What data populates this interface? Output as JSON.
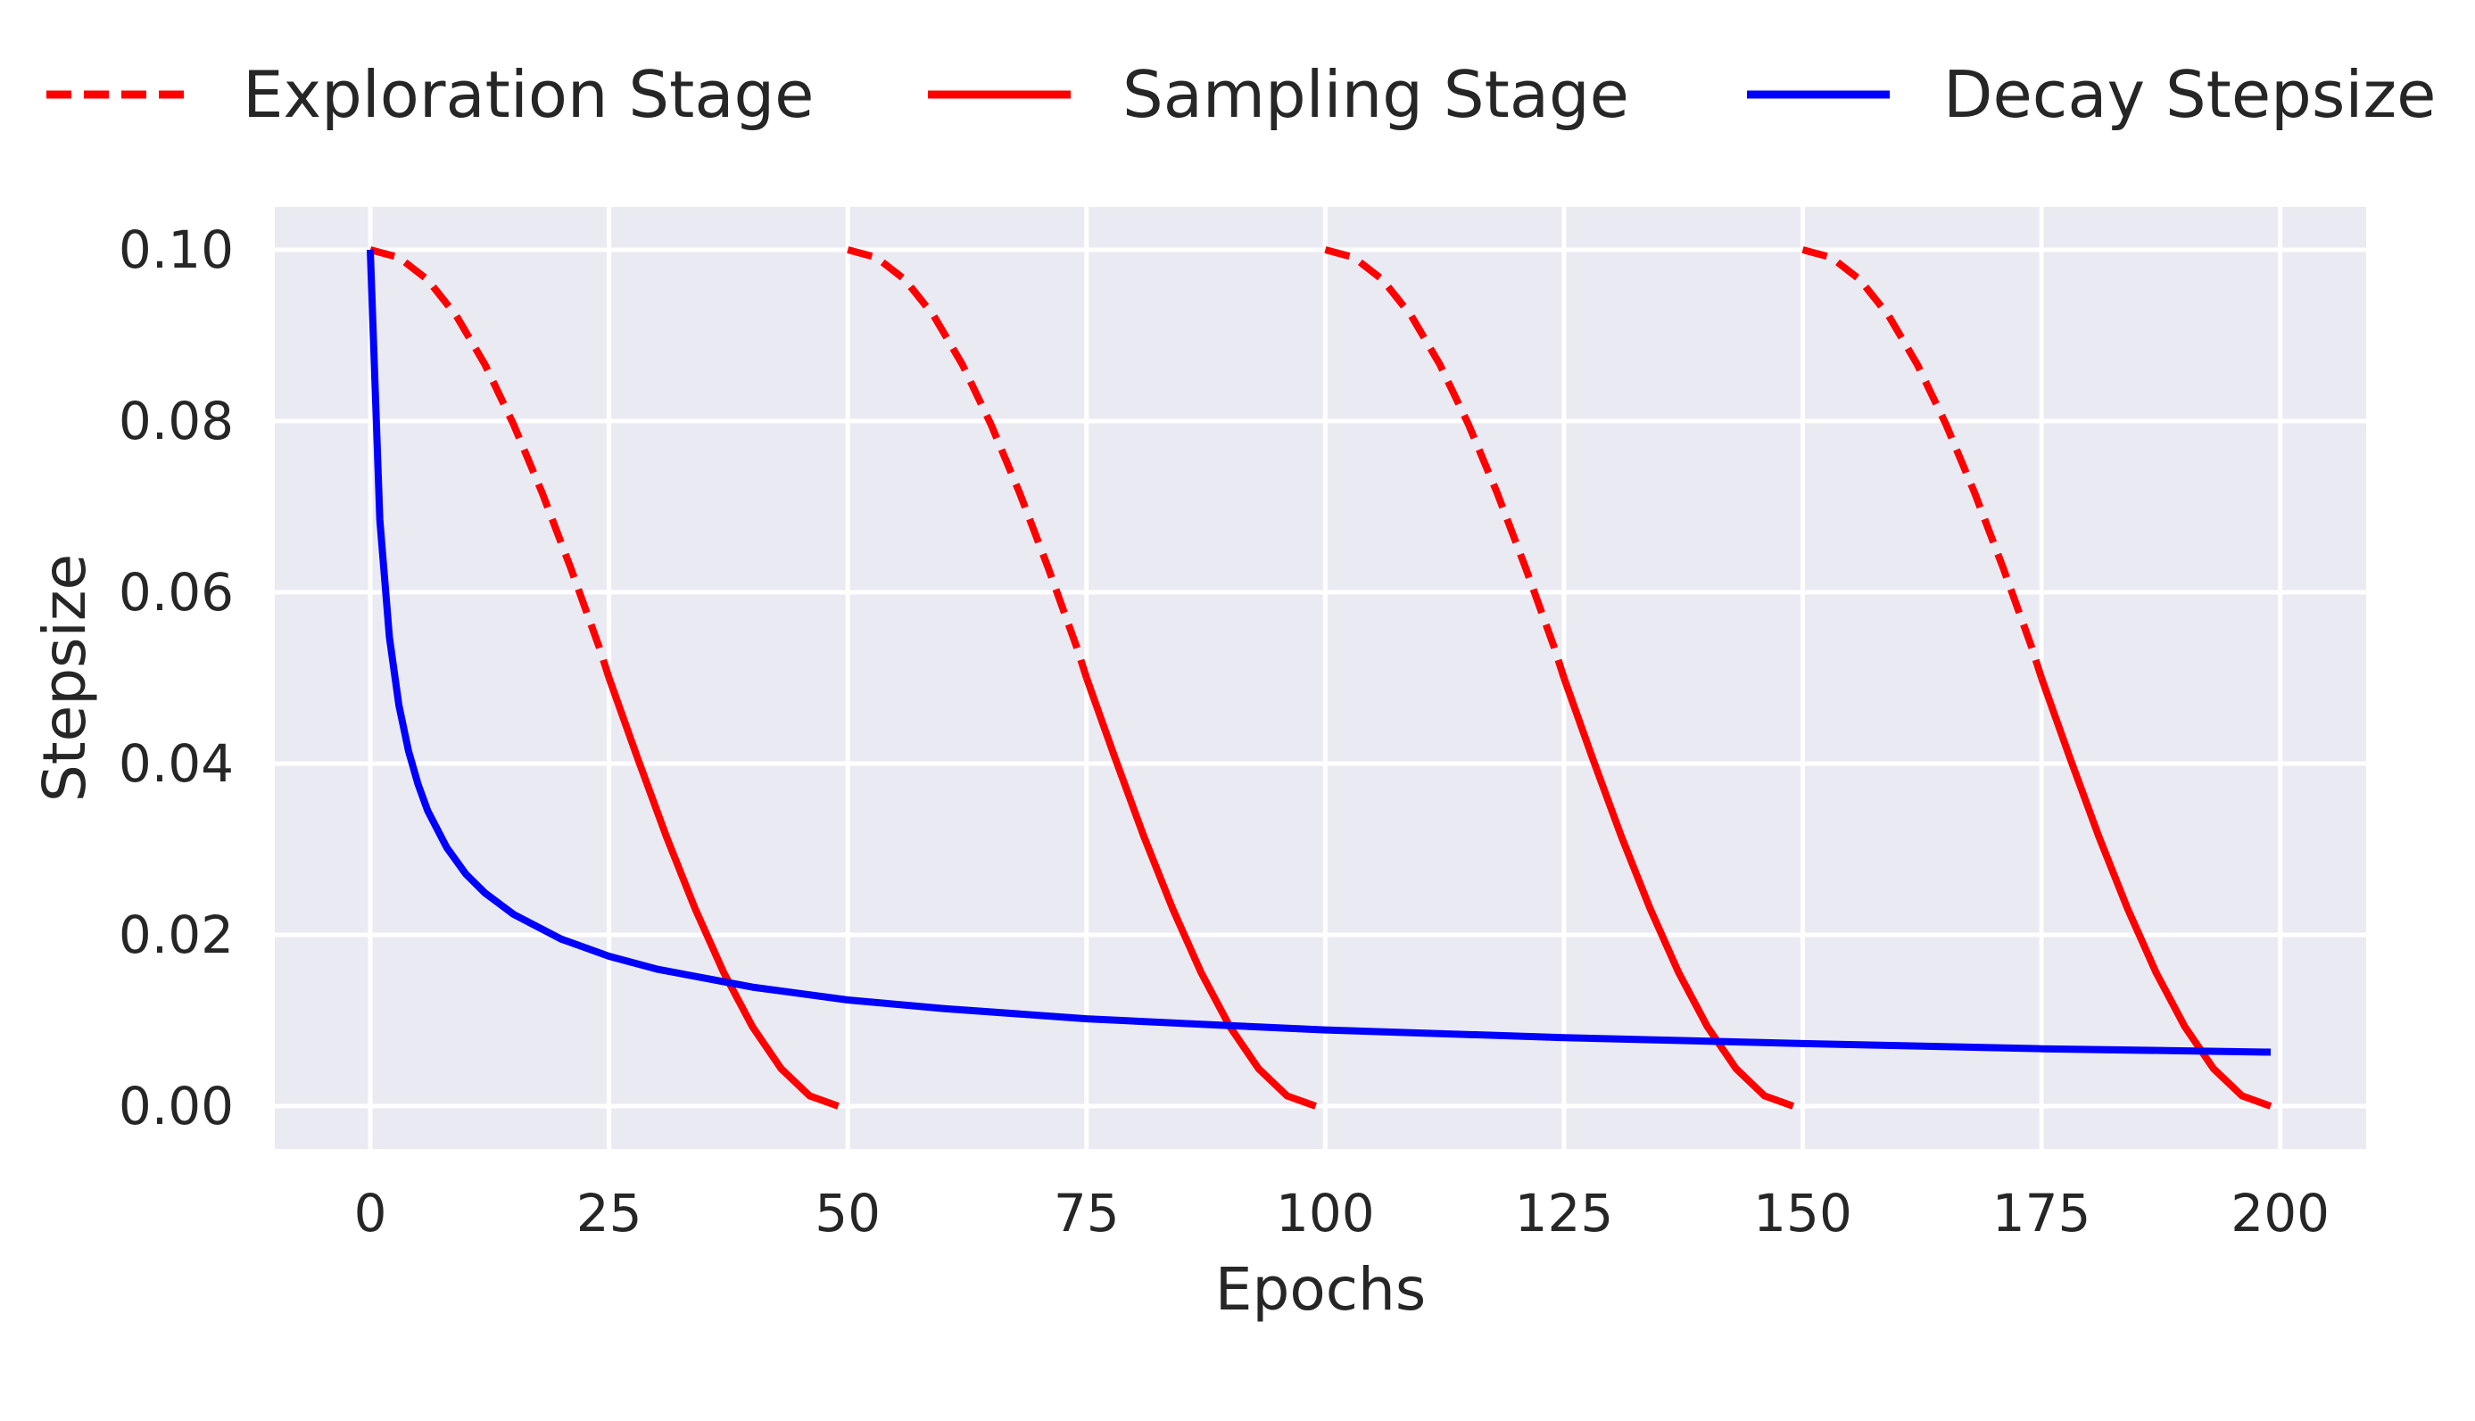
{
  "chart_data": {
    "type": "line",
    "title": "",
    "xlabel": "Epochs",
    "ylabel": "Stepsize",
    "xlim": [
      -10,
      209
    ],
    "ylim": [
      -0.005,
      0.105
    ],
    "xticks": [
      0,
      25,
      50,
      75,
      100,
      125,
      150,
      175,
      200
    ],
    "xtick_labels": [
      "0",
      "25",
      "50",
      "75",
      "100",
      "125",
      "150",
      "175",
      "200"
    ],
    "yticks": [
      0.0,
      0.02,
      0.04,
      0.06,
      0.08,
      0.1
    ],
    "ytick_labels": [
      "0.00",
      "0.02",
      "0.04",
      "0.06",
      "0.08",
      "0.10"
    ],
    "grid": true,
    "legend_position": "top",
    "colors": {
      "background": "#eaeaf2",
      "grid": "#ffffff",
      "exploration": "#ff0000",
      "sampling": "#ff0000",
      "decay": "#0000ff"
    },
    "series": [
      {
        "name": "Exploration Stage",
        "style": "dashed",
        "segments": [
          {
            "x": [
              0,
              3,
              6,
              9,
              12,
              15,
              18,
              21,
              24,
              25
            ],
            "y": [
              0.1,
              0.0991,
              0.0965,
              0.0923,
              0.0866,
              0.0796,
              0.0716,
              0.0628,
              0.0535,
              0.05
            ]
          },
          {
            "x": [
              50,
              53,
              56,
              59,
              62,
              65,
              68,
              71,
              74,
              75
            ],
            "y": [
              0.1,
              0.0991,
              0.0965,
              0.0923,
              0.0866,
              0.0796,
              0.0716,
              0.0628,
              0.0535,
              0.05
            ]
          },
          {
            "x": [
              100,
              103,
              106,
              109,
              112,
              115,
              118,
              121,
              124,
              125
            ],
            "y": [
              0.1,
              0.0991,
              0.0965,
              0.0923,
              0.0866,
              0.0796,
              0.0716,
              0.0628,
              0.0535,
              0.05
            ]
          },
          {
            "x": [
              150,
              153,
              156,
              159,
              162,
              165,
              168,
              171,
              174,
              175
            ],
            "y": [
              0.1,
              0.0991,
              0.0965,
              0.0923,
              0.0866,
              0.0796,
              0.0716,
              0.0628,
              0.0535,
              0.05
            ]
          }
        ]
      },
      {
        "name": "Sampling Stage",
        "style": "solid",
        "segments": [
          {
            "x": [
              25,
              28,
              31,
              34,
              37,
              40,
              43,
              46,
              49
            ],
            "y": [
              0.05,
              0.0406,
              0.0315,
              0.0231,
              0.0156,
              0.0093,
              0.0044,
              0.0012,
              0.0
            ]
          },
          {
            "x": [
              75,
              78,
              81,
              84,
              87,
              90,
              93,
              96,
              99
            ],
            "y": [
              0.05,
              0.0406,
              0.0315,
              0.0231,
              0.0156,
              0.0093,
              0.0044,
              0.0012,
              0.0
            ]
          },
          {
            "x": [
              125,
              128,
              131,
              134,
              137,
              140,
              143,
              146,
              149
            ],
            "y": [
              0.05,
              0.0406,
              0.0315,
              0.0231,
              0.0156,
              0.0093,
              0.0044,
              0.0012,
              0.0
            ]
          },
          {
            "x": [
              175,
              178,
              181,
              184,
              187,
              190,
              193,
              196,
              199
            ],
            "y": [
              0.05,
              0.0406,
              0.0315,
              0.0231,
              0.0156,
              0.0093,
              0.0044,
              0.0012,
              0.0
            ]
          }
        ]
      },
      {
        "name": "Decay Stepsize",
        "style": "solid",
        "segments": [
          {
            "x": [
              0,
              1,
              2,
              3,
              4,
              5,
              6,
              8,
              10,
              12,
              15,
              20,
              25,
              30,
              40,
              50,
              60,
              75,
              90,
              100,
              125,
              150,
              175,
              199
            ],
            "y": [
              0.1,
              0.0685,
              0.0548,
              0.0468,
              0.0415,
              0.0376,
              0.0345,
              0.0302,
              0.0271,
              0.0249,
              0.0224,
              0.0195,
              0.0175,
              0.016,
              0.0139,
              0.0124,
              0.0114,
              0.0102,
              0.0094,
              0.0089,
              0.008,
              0.0073,
              0.0067,
              0.0063
            ]
          }
        ]
      }
    ]
  }
}
